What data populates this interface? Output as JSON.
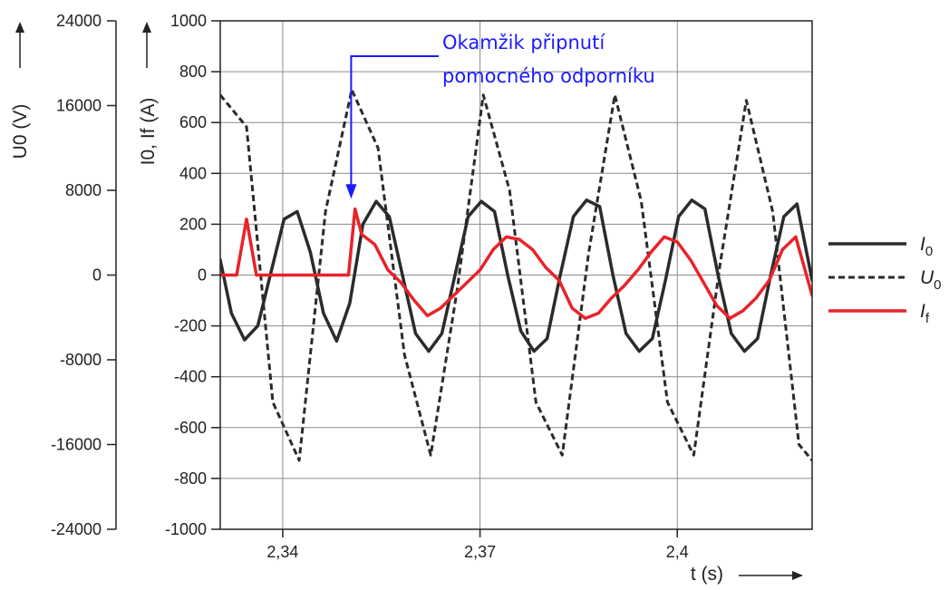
{
  "chart_data": {
    "type": "line",
    "xlabel": "t (s)",
    "x_ticks": [
      "2,34",
      "2,37",
      "2,4"
    ],
    "xlim": [
      2.3305,
      2.4205
    ],
    "left_axis": {
      "label": "U0 (V)",
      "ticks": [
        "24000",
        "16000",
        "8000",
        "0",
        "-8000",
        "-16000",
        "-24000"
      ],
      "ylim": [
        -24000,
        24000
      ]
    },
    "right_axis": {
      "label": "I0, If (A)",
      "ticks": [
        "1000",
        "800",
        "600",
        "400",
        "200",
        "0",
        "-200",
        "-400",
        "-600",
        "-800",
        "-1000"
      ],
      "ylim": [
        -1000,
        1000
      ]
    },
    "grid": true,
    "legend_position": "right",
    "annotation": {
      "line1": "Okamžik připnutí",
      "line2": "pomocného odporníku",
      "x": 2.3504,
      "y": 300
    },
    "series": [
      {
        "name": "I0",
        "axis": "right",
        "color": "#2b2b2b",
        "style": "solid",
        "x": [
          2.3305,
          2.3322,
          2.3342,
          2.3362,
          2.3382,
          2.3402,
          2.3422,
          2.3442,
          2.3462,
          2.3482,
          2.3502,
          2.3522,
          2.3542,
          2.3562,
          2.3582,
          2.3602,
          2.3622,
          2.3642,
          2.3662,
          2.3682,
          2.3702,
          2.3722,
          2.3742,
          2.3762,
          2.3782,
          2.3802,
          2.3822,
          2.3842,
          2.3862,
          2.3882,
          2.3902,
          2.3922,
          2.3942,
          2.3962,
          2.3982,
          2.4002,
          2.4022,
          2.4042,
          2.4062,
          2.4082,
          2.4102,
          2.4122,
          2.4142,
          2.4162,
          2.4182,
          2.4205
        ],
        "y": [
          60,
          -150,
          -255,
          -200,
          10,
          220,
          250,
          90,
          -150,
          -260,
          -110,
          200,
          290,
          230,
          0,
          -230,
          -300,
          -230,
          0,
          230,
          290,
          250,
          0,
          -220,
          -300,
          -250,
          0,
          230,
          295,
          270,
          0,
          -230,
          -300,
          -250,
          -20,
          230,
          295,
          260,
          0,
          -230,
          -300,
          -250,
          0,
          230,
          280,
          -20
        ]
      },
      {
        "name": "U0",
        "axis": "left",
        "color": "#2b2b2b",
        "style": "dashed",
        "x": [
          2.3305,
          2.3345,
          2.3385,
          2.3425,
          2.3465,
          2.3505,
          2.3545,
          2.3585,
          2.3625,
          2.3665,
          2.3705,
          2.3745,
          2.3785,
          2.3825,
          2.3865,
          2.3905,
          2.3945,
          2.3985,
          2.4025,
          2.4065,
          2.4105,
          2.4145,
          2.4185,
          2.4205
        ],
        "y": [
          17000,
          14000,
          -12000,
          -17500,
          6000,
          17500,
          12000,
          -7500,
          -17000,
          -1500,
          17000,
          8000,
          -12000,
          -17000,
          2000,
          17000,
          7000,
          -12000,
          -17000,
          1000,
          16500,
          6000,
          -16000,
          -17500
        ]
      },
      {
        "name": "If",
        "axis": "right",
        "color": "#e8232a",
        "style": "solid",
        "x": [
          2.3305,
          2.332,
          2.333,
          2.3345,
          2.336,
          2.3375,
          2.339,
          2.3405,
          2.342,
          2.344,
          2.346,
          2.348,
          2.35,
          2.351,
          2.352,
          2.354,
          2.356,
          2.358,
          2.36,
          2.362,
          2.364,
          2.366,
          2.368,
          2.37,
          2.372,
          2.374,
          2.376,
          2.378,
          2.38,
          2.382,
          2.384,
          2.386,
          2.388,
          2.39,
          2.392,
          2.394,
          2.396,
          2.398,
          2.4,
          2.402,
          2.404,
          2.406,
          2.408,
          2.41,
          2.412,
          2.414,
          2.416,
          2.418,
          2.4205
        ],
        "y": [
          0,
          0,
          0,
          220,
          0,
          0,
          0,
          0,
          0,
          0,
          0,
          0,
          0,
          260,
          160,
          120,
          20,
          -30,
          -100,
          -160,
          -130,
          -80,
          -30,
          20,
          100,
          150,
          140,
          100,
          30,
          -20,
          -130,
          -170,
          -150,
          -90,
          -40,
          20,
          90,
          150,
          130,
          60,
          -30,
          -120,
          -170,
          -140,
          -90,
          -20,
          100,
          150,
          -80
        ]
      }
    ]
  }
}
